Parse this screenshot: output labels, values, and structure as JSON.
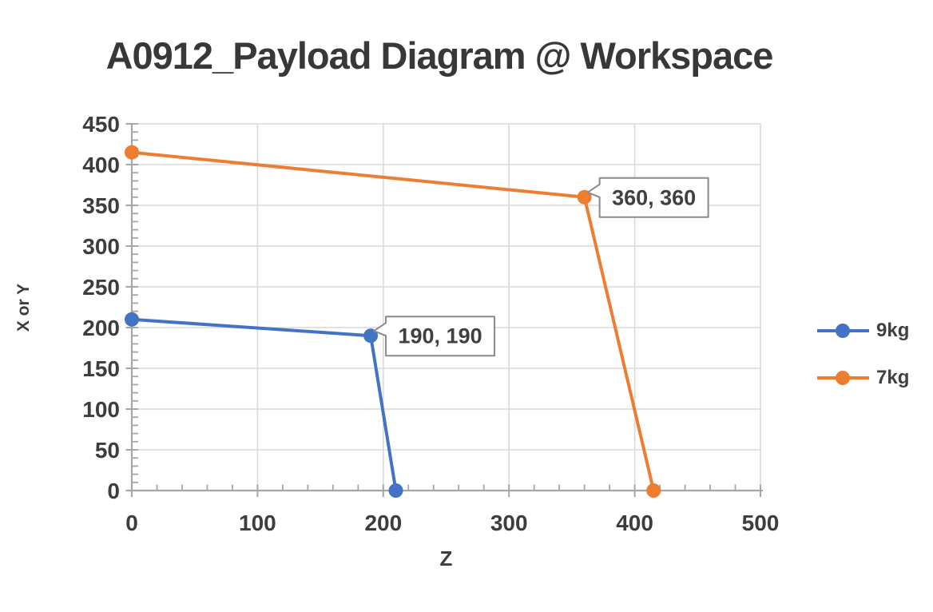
{
  "chart_data": {
    "type": "line",
    "title": "A0912_Payload Diagram @ Workspace",
    "xlabel": "Z",
    "ylabel": "X or Y",
    "xlim": [
      0,
      500
    ],
    "ylim": [
      0,
      450
    ],
    "x_ticks": [
      0,
      100,
      200,
      300,
      400,
      500
    ],
    "y_ticks": [
      0,
      50,
      100,
      150,
      200,
      250,
      300,
      350,
      400,
      450
    ],
    "x_minor_step": 20,
    "y_minor_step": 10,
    "grid": true,
    "legend_position": "right",
    "series": [
      {
        "name": "9kg",
        "color": "#4472C4",
        "points": [
          [
            0,
            210
          ],
          [
            190,
            190
          ],
          [
            210,
            0
          ]
        ]
      },
      {
        "name": "7kg",
        "color": "#ED7D31",
        "points": [
          [
            0,
            415
          ],
          [
            360,
            360
          ],
          [
            415,
            0
          ]
        ]
      }
    ],
    "data_labels": [
      {
        "series": "9kg",
        "point": [
          190,
          190
        ],
        "text": "190, 190"
      },
      {
        "series": "7kg",
        "point": [
          360,
          360
        ],
        "text": "360, 360"
      }
    ],
    "colors": {
      "gridline": "#D9D9D9",
      "axis": "#A6A6A6",
      "tick_text": "#3D3D3D",
      "title_text": "#383838",
      "callout_border": "#8A8A8A",
      "callout_fill": "#FFFFFF"
    }
  }
}
